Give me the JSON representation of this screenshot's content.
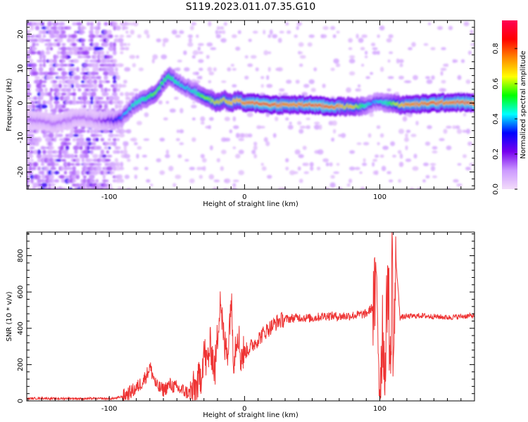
{
  "figure": {
    "title": "S119.2023.011.07.35.G10"
  },
  "chart_data": [
    {
      "type": "heatmap",
      "title": "S119.2023.011.07.35.G10",
      "xlabel": "Height of straight line (km)",
      "ylabel": "Frequency (Hz)",
      "xlim": [
        -161,
        170
      ],
      "ylim": [
        -25,
        24
      ],
      "x_ticks": [
        -100,
        0,
        100
      ],
      "x_tick_labels": [
        "-100",
        "0",
        "100"
      ],
      "y_ticks": [
        -20,
        -10,
        0,
        10,
        20
      ],
      "y_tick_labels": [
        "-20",
        "-10",
        "0",
        "10",
        "20"
      ],
      "grid": false,
      "colorbar": {
        "label": "Normalized spectral amplitude",
        "range": [
          0,
          0.96
        ],
        "ticks": [
          0.0,
          0.2,
          0.4,
          0.6,
          0.8
        ],
        "tick_labels": [
          "0.0",
          "0.2",
          "0.4",
          "0.6",
          "0.8"
        ],
        "colors": [
          "#f2dcfa",
          "#cc99ff",
          "#7700ee",
          "#0000ff",
          "#00ffff",
          "#00ff00",
          "#ffff00",
          "#ff8800",
          "#ff0000",
          "#ff0055"
        ]
      },
      "ridge": {
        "x": [
          -161,
          -150,
          -140,
          -130,
          -120,
          -110,
          -100,
          -95,
          -90,
          -85,
          -80,
          -75,
          -70,
          -65,
          -60,
          -55,
          -50,
          -45,
          -40,
          -35,
          -30,
          -25,
          -20,
          -15,
          -10,
          -5,
          0,
          10,
          20,
          30,
          40,
          50,
          60,
          70,
          75,
          80,
          85,
          90,
          95,
          100,
          105,
          110,
          115,
          120,
          130,
          140,
          150,
          160,
          170
        ],
        "freq": [
          -5,
          -5,
          -6,
          -5,
          -4,
          -5,
          -5,
          -5,
          -4,
          -2,
          0,
          1,
          2,
          3,
          6,
          8,
          6,
          5,
          4,
          3,
          2,
          1,
          0,
          1,
          0,
          1,
          0,
          0,
          -0.5,
          -0.5,
          -0.5,
          -0.5,
          -1,
          -1,
          -1,
          -1,
          -1,
          -0.5,
          0,
          0.5,
          0,
          0,
          -0.5,
          -0.5,
          -0.3,
          0,
          0.2,
          0.2,
          0
        ],
        "amplitude": [
          0.15,
          0.15,
          0.15,
          0.15,
          0.15,
          0.15,
          0.25,
          0.3,
          0.4,
          0.45,
          0.5,
          0.5,
          0.55,
          0.6,
          0.55,
          0.55,
          0.5,
          0.45,
          0.45,
          0.5,
          0.6,
          0.6,
          0.7,
          0.7,
          0.75,
          0.75,
          0.8,
          0.85,
          0.85,
          0.8,
          0.8,
          0.85,
          0.85,
          0.8,
          0.7,
          0.75,
          0.6,
          0.5,
          0.4,
          0.45,
          0.5,
          0.6,
          0.7,
          0.8,
          0.8,
          0.85,
          0.8,
          0.85,
          0.85
        ]
      }
    },
    {
      "type": "line",
      "xlabel": "Height of straight line (km)",
      "ylabel": "SNR (10 * v/v)",
      "xlim": [
        -161,
        170
      ],
      "ylim": [
        0,
        930
      ],
      "x_ticks": [
        -100,
        0,
        100
      ],
      "x_tick_labels": [
        "-100",
        "0",
        "100"
      ],
      "y_ticks": [
        0,
        200,
        400,
        600,
        800
      ],
      "y_tick_labels": [
        "0",
        "200",
        "400",
        "600",
        "800"
      ],
      "grid": false,
      "line_color": "#ee3333",
      "series": [
        {
          "x": [
            -161,
            -150,
            -140,
            -130,
            -120,
            -110,
            -100,
            -95,
            -90,
            -85,
            -80,
            -75,
            -72,
            -70,
            -65,
            -60,
            -55,
            -50,
            -45,
            -40,
            -35,
            -32,
            -30,
            -28,
            -25,
            -22,
            -20,
            -18,
            -15,
            -12,
            -10,
            -8,
            -6,
            -5,
            -3,
            0,
            5,
            10,
            15,
            20,
            25,
            30,
            40,
            50,
            60,
            70,
            80,
            90,
            95,
            98,
            100,
            102,
            104,
            106,
            108,
            109,
            110,
            112,
            115,
            120,
            130,
            140,
            150,
            160,
            170
          ],
          "values": [
            12,
            15,
            12,
            14,
            12,
            13,
            12,
            15,
            25,
            45,
            70,
            110,
            150,
            190,
            80,
            60,
            90,
            70,
            55,
            40,
            80,
            150,
            280,
            200,
            310,
            160,
            350,
            590,
            290,
            300,
            580,
            240,
            350,
            400,
            250,
            270,
            300,
            340,
            380,
            410,
            440,
            450,
            460,
            455,
            470,
            465,
            470,
            480,
            520,
            600,
            20,
            430,
            110,
            770,
            60,
            930,
            200,
            770,
            460,
            465,
            470,
            465,
            460,
            465,
            470
          ]
        }
      ]
    }
  ]
}
